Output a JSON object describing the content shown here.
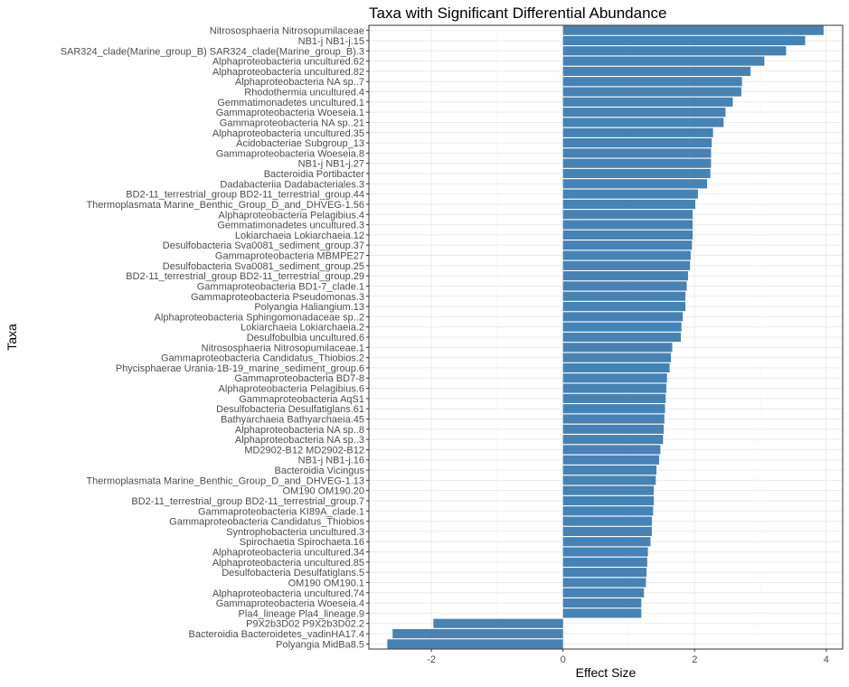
{
  "chart_data": {
    "type": "bar",
    "orientation": "horizontal",
    "title": "Taxa with Significant Differential Abundance",
    "xlabel": "Effect Size",
    "ylabel": "Taxa",
    "xlim": [
      -2.95,
      4.25
    ],
    "x_ticks": [
      -2,
      0,
      2,
      4
    ],
    "grid": true,
    "color": "#4682b4",
    "categories": [
      "Nitrososphaeria Nitrosopumilaceae",
      "NB1-j NB1-j.15",
      "SAR324_clade(Marine_group_B) SAR324_clade(Marine_group_B).3",
      "Alphaproteobacteria uncultured.62",
      "Alphaproteobacteria uncultured.82",
      "Alphaproteobacteria NA sp..7",
      "Rhodothermia uncultured.4",
      "Gemmatimonadetes uncultured.1",
      "Gammaproteobacteria Woeseia.1",
      "Gammaproteobacteria NA sp..21",
      "Alphaproteobacteria uncultured.35",
      "Acidobacteriae Subgroup_13",
      "Gammaproteobacteria Woeseia.8",
      "NB1-j NB1-j.27",
      "Bacteroidia Portibacter",
      "Dadabacteriia Dadabacteriales.3",
      "BD2-11_terrestrial_group BD2-11_terrestrial_group.44",
      "Thermoplasmata Marine_Benthic_Group_D_and_DHVEG-1.56",
      "Alphaproteobacteria Pelagibius.4",
      "Gemmatimonadetes uncultured.3",
      "Lokiarchaeia Lokiarchaeia.12",
      "Desulfobacteria Sva0081_sediment_group.37",
      "Gammaproteobacteria MBMPE27",
      "Desulfobacteria Sva0081_sediment_group.25",
      "BD2-11_terrestrial_group BD2-11_terrestrial_group.29",
      "Gammaproteobacteria BD1-7_clade.1",
      "Gammaproteobacteria Pseudomonas.3",
      "Polyangia Haliangium.13",
      "Alphaproteobacteria Sphingomonadaceae sp..2",
      "Lokiarchaeia Lokiarchaeia.2",
      "Desulfobulbia uncultured.6",
      "Nitrososphaeria Nitrosopumilaceae.1",
      "Gammaproteobacteria Candidatus_Thiobios.2",
      "Phycisphaerae Urania-1B-19_marine_sediment_group.6",
      "Gammaproteobacteria BD7-8",
      "Alphaproteobacteria Pelagibius.6",
      "Gammaproteobacteria AqS1",
      "Desulfobacteria Desulfatiglans.61",
      "Bathyarchaeia Bathyarchaeia.45",
      "Alphaproteobacteria NA sp..8",
      "Alphaproteobacteria NA sp..3",
      "MD2902-B12 MD2902-B12",
      "NB1-j NB1-j.16",
      "Bacteroidia Vicingus",
      "Thermoplasmata Marine_Benthic_Group_D_and_DHVEG-1.13",
      "OM190 OM190.20",
      "BD2-11_terrestrial_group BD2-11_terrestrial_group.7",
      "Gammaproteobacteria KI89A_clade.1",
      "Gammaproteobacteria Candidatus_Thiobios",
      "Syntrophobacteria uncultured.3",
      "Spirochaetia Spirochaeta.16",
      "Alphaproteobacteria uncultured.34",
      "Alphaproteobacteria uncultured.85",
      "Desulfobacteria Desulfatiglans.5",
      "OM190 OM190.1",
      "Alphaproteobacteria uncultured.74",
      "Gammaproteobacteria Woeseia.4",
      "Pla4_lineage Pla4_lineage.9",
      "P9X2b3D02 P9X2b3D02.2",
      "Bacteroidia Bacteroidetes_vadinHA17.4",
      "Polyangia MidBa8.5"
    ],
    "values": [
      3.96,
      3.68,
      3.39,
      3.06,
      2.85,
      2.72,
      2.71,
      2.58,
      2.47,
      2.44,
      2.28,
      2.26,
      2.25,
      2.25,
      2.24,
      2.19,
      2.05,
      2.01,
      1.97,
      1.97,
      1.97,
      1.96,
      1.94,
      1.93,
      1.9,
      1.88,
      1.86,
      1.86,
      1.82,
      1.8,
      1.79,
      1.66,
      1.64,
      1.62,
      1.58,
      1.57,
      1.56,
      1.55,
      1.54,
      1.53,
      1.52,
      1.48,
      1.46,
      1.42,
      1.41,
      1.38,
      1.38,
      1.37,
      1.35,
      1.35,
      1.33,
      1.29,
      1.28,
      1.27,
      1.26,
      1.23,
      1.19,
      1.19,
      -1.97,
      -2.59,
      -2.67
    ]
  }
}
